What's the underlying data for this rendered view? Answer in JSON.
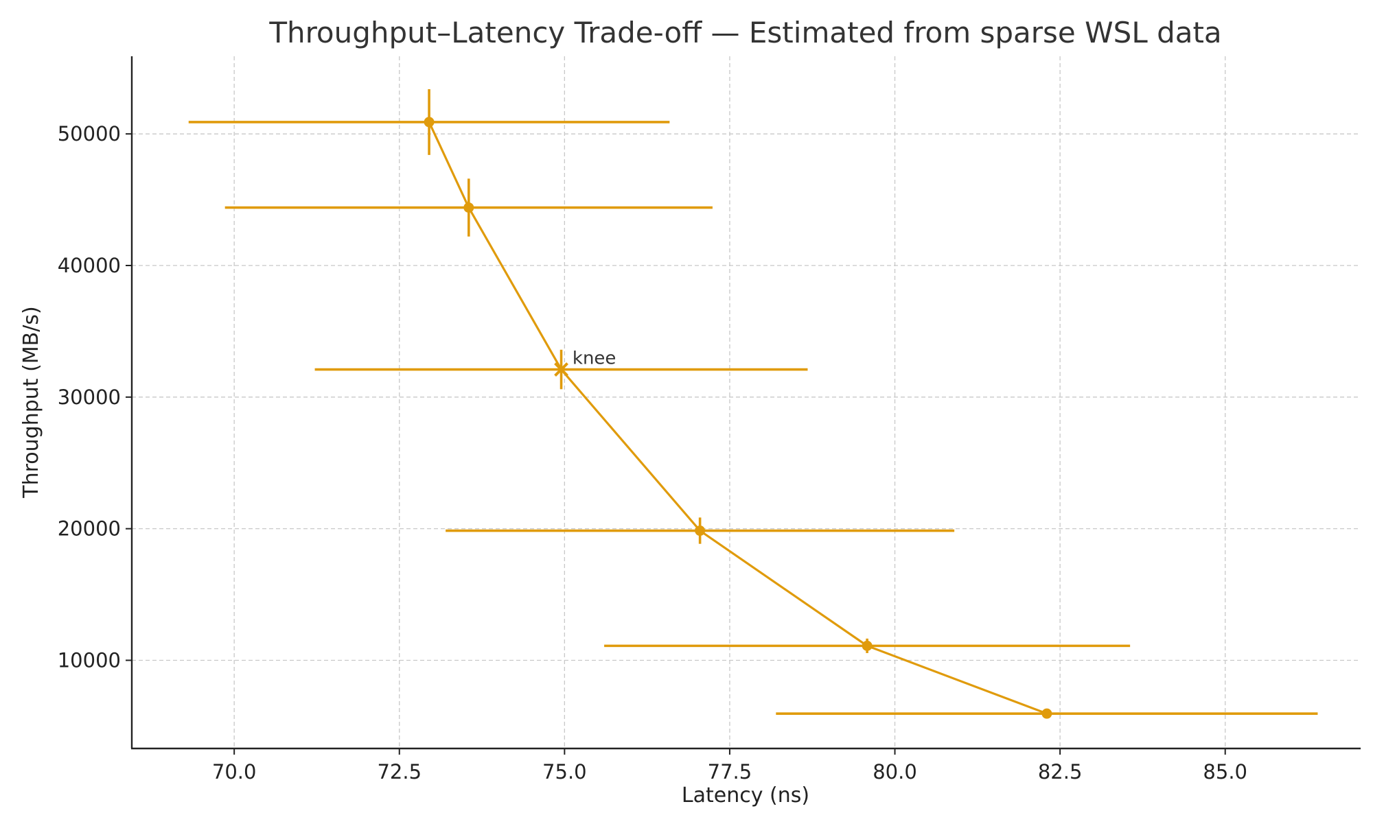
{
  "chart_data": {
    "type": "scatter",
    "title": "Throughput–Latency Trade-off — Estimated from sparse WSL data",
    "xlabel": "Latency (ns)",
    "ylabel": "Throughput (MB/s)",
    "xlim": [
      68.45,
      87.05
    ],
    "ylim": [
      3300,
      55900
    ],
    "xticks": [
      70.0,
      72.5,
      75.0,
      77.5,
      80.0,
      82.5,
      85.0
    ],
    "xtick_labels": [
      "70.0",
      "72.5",
      "75.0",
      "77.5",
      "80.0",
      "82.5",
      "85.0"
    ],
    "yticks": [
      10000,
      20000,
      30000,
      40000,
      50000
    ],
    "ytick_labels": [
      "10000",
      "20000",
      "30000",
      "40000",
      "50000"
    ],
    "grid": true,
    "color": "#e09b0c",
    "series": [
      {
        "x": [
          72.95,
          73.55,
          74.95,
          77.05,
          79.58,
          82.3
        ],
        "y": [
          50900,
          44400,
          32100,
          19850,
          11100,
          5950
        ],
        "xerr": [
          3.64,
          3.69,
          3.73,
          3.85,
          3.98,
          4.1
        ],
        "yerr": [
          2500,
          2200,
          1500,
          1000,
          550,
          300
        ],
        "markers": [
          "circle",
          "circle",
          "x",
          "circle",
          "circle",
          "circle"
        ]
      }
    ],
    "annotations": [
      {
        "text": "knee",
        "x": 75.12,
        "y": 33000
      }
    ]
  }
}
